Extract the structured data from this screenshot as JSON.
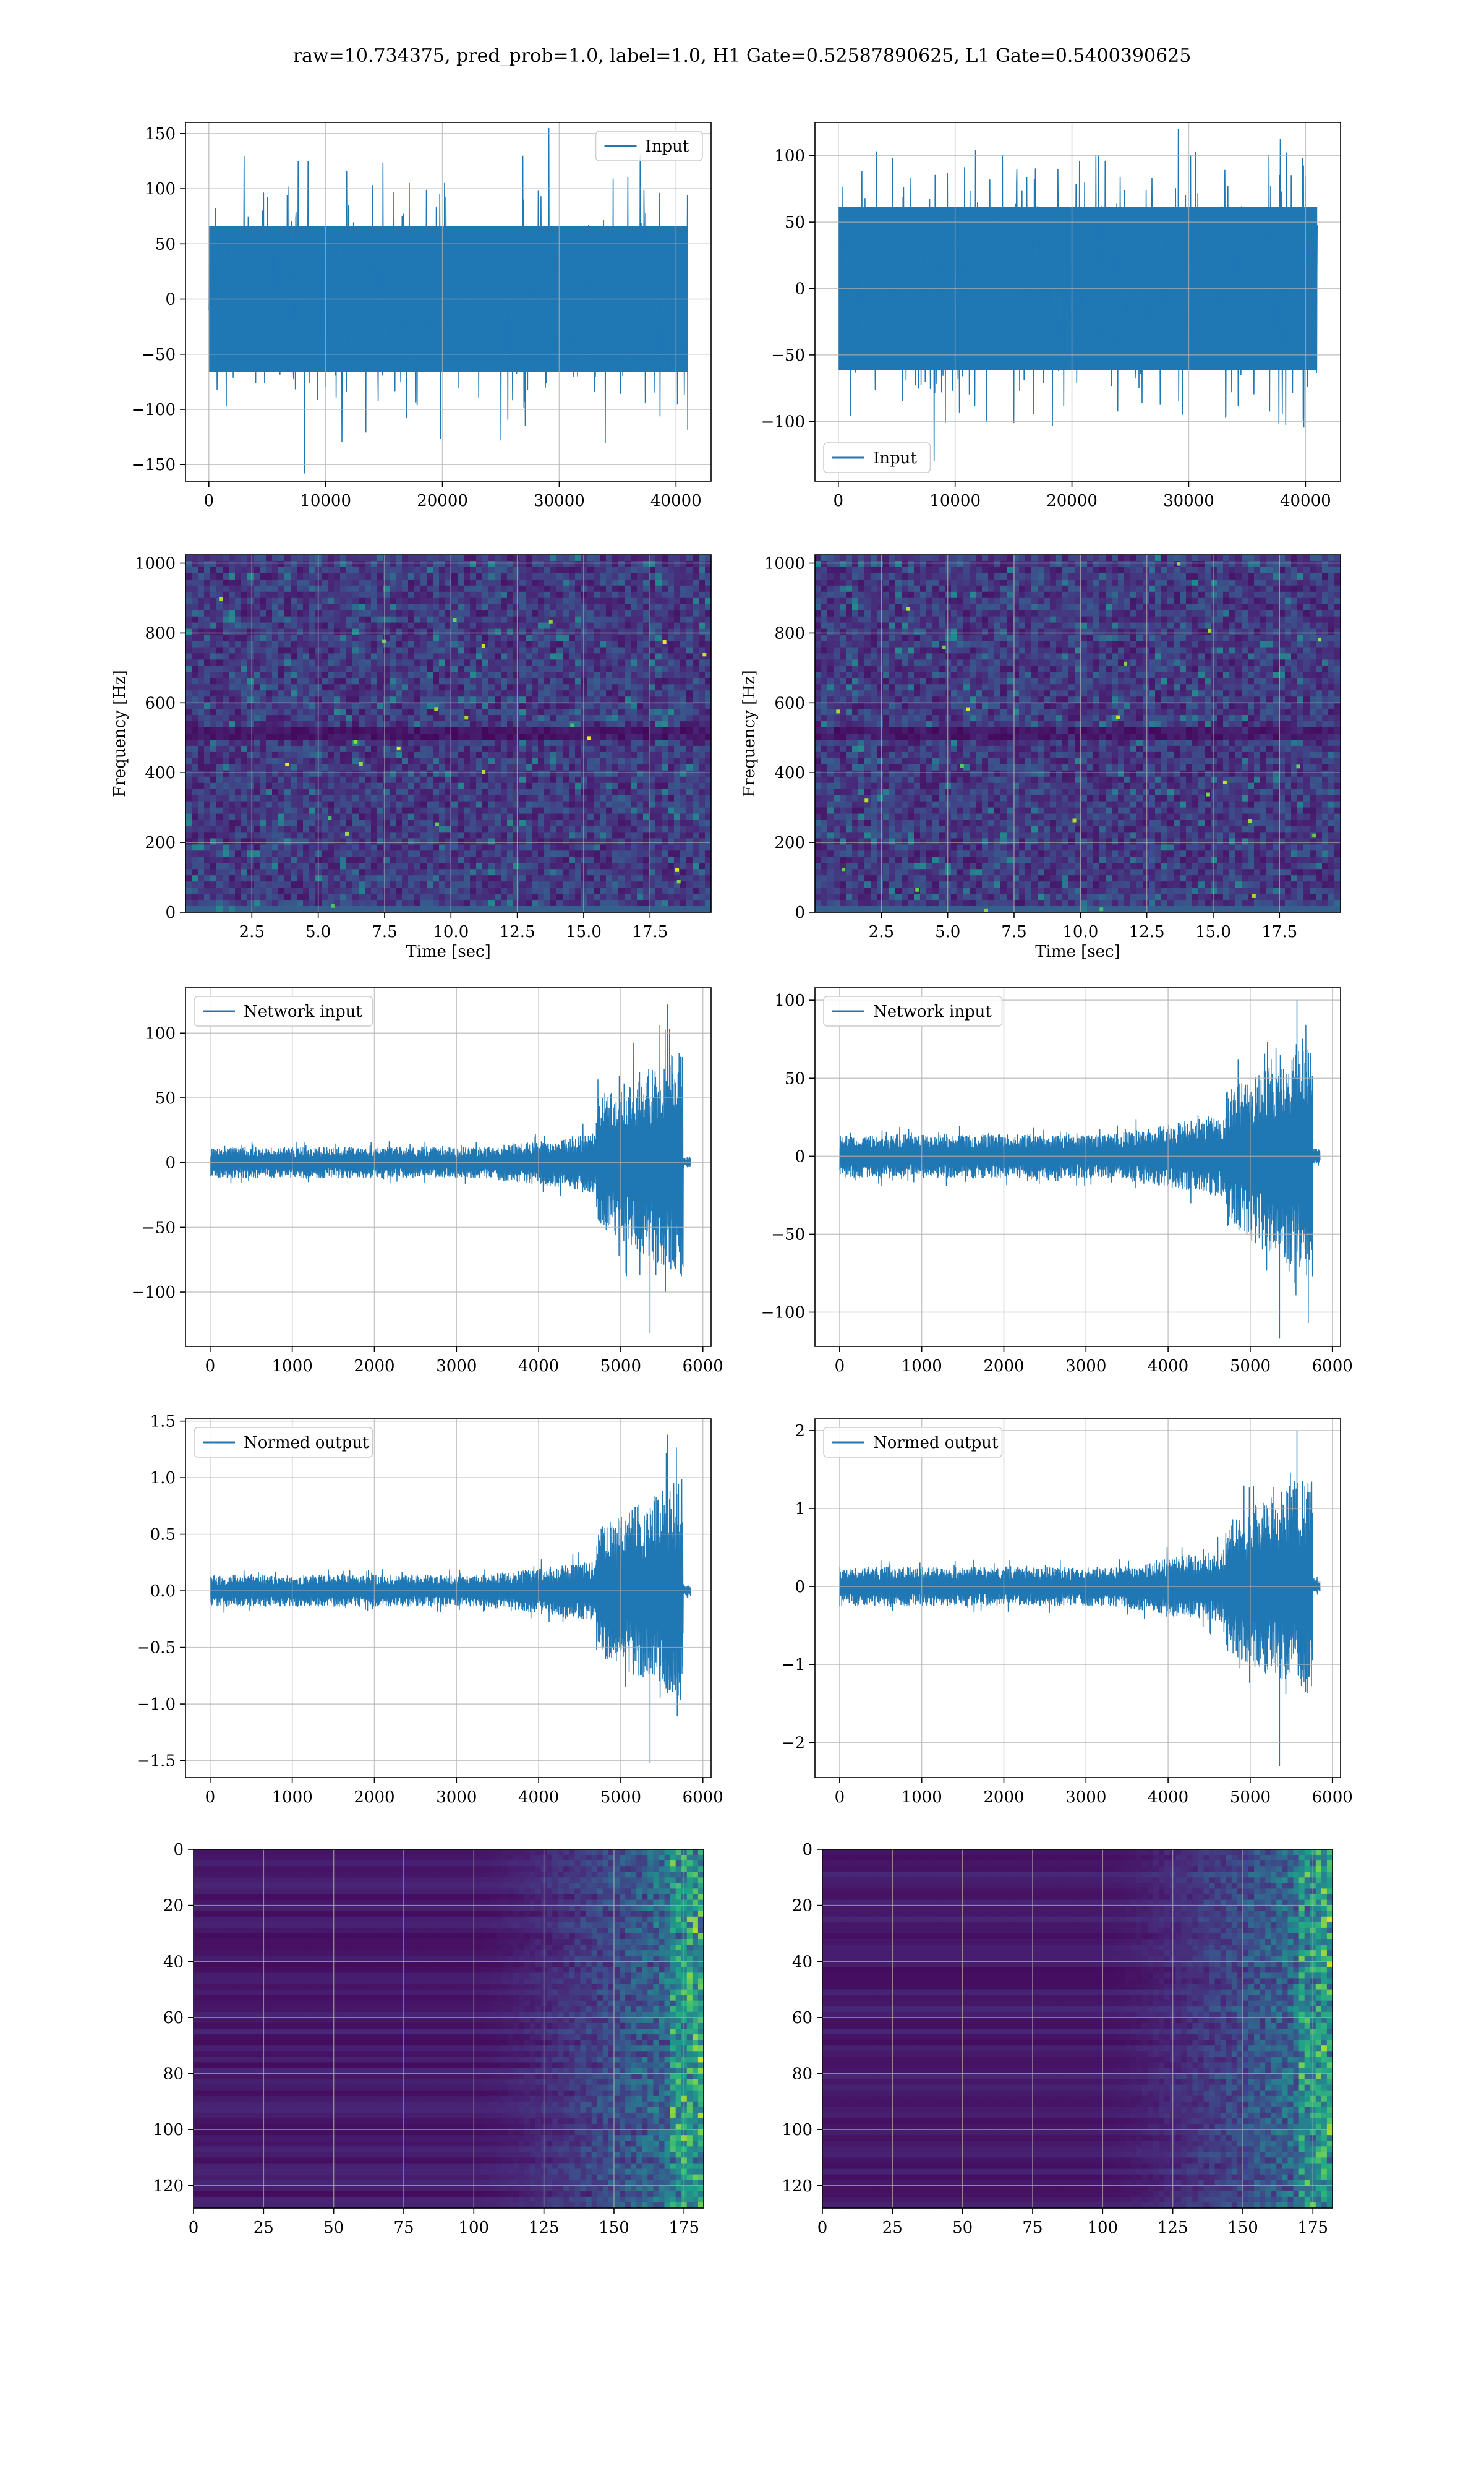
{
  "figure": {
    "title": "raw=10.734375, pred_prob=1.0, label=1.0, H1 Gate=0.52587890625, L1 Gate=0.5400390625"
  },
  "chart_data": [
    {
      "id": "h1-input",
      "type": "line",
      "legend": [
        "Input"
      ],
      "legend_loc": "upper right",
      "xlim": [
        -2000,
        43000
      ],
      "ylim": [
        -165,
        160
      ],
      "xticks": [
        0,
        10000,
        20000,
        30000,
        40000
      ],
      "yticks": [
        -150,
        -100,
        -50,
        0,
        50,
        100,
        150
      ],
      "xlabel": "",
      "ylabel": "",
      "grid": true,
      "series": [
        {
          "name": "Input",
          "x_range": [
            0,
            41000
          ],
          "envelope": 75,
          "peak": 155,
          "trough": -158
        }
      ]
    },
    {
      "id": "l1-input",
      "type": "line",
      "legend": [
        "Input"
      ],
      "legend_loc": "lower left",
      "xlim": [
        -2000,
        43000
      ],
      "ylim": [
        -145,
        125
      ],
      "xticks": [
        0,
        10000,
        20000,
        30000,
        40000
      ],
      "yticks": [
        -100,
        -50,
        0,
        50,
        100
      ],
      "xlabel": "",
      "ylabel": "",
      "grid": true,
      "series": [
        {
          "name": "Input",
          "x_range": [
            0,
            41000
          ],
          "envelope": 70,
          "peak": 120,
          "trough": -130
        }
      ]
    },
    {
      "id": "h1-spectrogram",
      "type": "heatmap",
      "colormap": "viridis",
      "xlim": [
        0,
        19.8
      ],
      "ylim": [
        0,
        1024
      ],
      "xticks": [
        2.5,
        5.0,
        7.5,
        10.0,
        12.5,
        15.0,
        17.5
      ],
      "yticks": [
        0,
        200,
        400,
        600,
        800,
        1000
      ],
      "xlabel": "Time [sec]",
      "ylabel": "Frequency [Hz]",
      "grid": true
    },
    {
      "id": "l1-spectrogram",
      "type": "heatmap",
      "colormap": "viridis",
      "xlim": [
        0,
        19.8
      ],
      "ylim": [
        0,
        1024
      ],
      "xticks": [
        2.5,
        5.0,
        7.5,
        10.0,
        12.5,
        15.0,
        17.5
      ],
      "yticks": [
        0,
        200,
        400,
        600,
        800,
        1000
      ],
      "xlabel": "Time [sec]",
      "ylabel": "Frequency [Hz]",
      "grid": true
    },
    {
      "id": "h1-network-input",
      "type": "line",
      "legend": [
        "Network input"
      ],
      "legend_loc": "upper left",
      "xlim": [
        -300,
        6100
      ],
      "ylim": [
        -142,
        135
      ],
      "xticks": [
        0,
        1000,
        2000,
        3000,
        4000,
        5000,
        6000
      ],
      "yticks": [
        -100,
        -50,
        0,
        50,
        100
      ],
      "xlabel": "",
      "ylabel": "",
      "grid": true,
      "series": [
        {
          "name": "Network input",
          "x_range": [
            0,
            5850
          ],
          "base_amp": 12,
          "burst_start": 4700,
          "burst_end": 5760,
          "burst_amp": 90,
          "peak": 122,
          "trough": -132
        }
      ]
    },
    {
      "id": "l1-network-input",
      "type": "line",
      "legend": [
        "Network input"
      ],
      "legend_loc": "upper left",
      "xlim": [
        -300,
        6100
      ],
      "ylim": [
        -122,
        108
      ],
      "xticks": [
        0,
        1000,
        2000,
        3000,
        4000,
        5000,
        6000
      ],
      "yticks": [
        -100,
        -50,
        0,
        50,
        100
      ],
      "xlabel": "",
      "ylabel": "",
      "grid": true,
      "series": [
        {
          "name": "Network input",
          "x_range": [
            0,
            5850
          ],
          "base_amp": 14,
          "burst_start": 4700,
          "burst_end": 5760,
          "burst_amp": 80,
          "peak": 100,
          "trough": -117
        }
      ]
    },
    {
      "id": "h1-normed-output",
      "type": "line",
      "legend": [
        "Normed output"
      ],
      "legend_loc": "upper left",
      "xlim": [
        -300,
        6100
      ],
      "ylim": [
        -1.65,
        1.52
      ],
      "xticks": [
        0,
        1000,
        2000,
        3000,
        4000,
        5000,
        6000
      ],
      "yticks": [
        -1.5,
        -1.0,
        -0.5,
        0.0,
        0.5,
        1.0,
        1.5
      ],
      "xlabel": "",
      "ylabel": "",
      "grid": true,
      "series": [
        {
          "name": "Normed output",
          "x_range": [
            0,
            5850
          ],
          "base_amp": 0.14,
          "burst_start": 4700,
          "burst_end": 5760,
          "burst_amp": 1.0,
          "peak": 1.38,
          "trough": -1.52
        }
      ]
    },
    {
      "id": "l1-normed-output",
      "type": "line",
      "legend": [
        "Normed output"
      ],
      "legend_loc": "upper left",
      "xlim": [
        -300,
        6100
      ],
      "ylim": [
        -2.45,
        2.15
      ],
      "xticks": [
        0,
        1000,
        2000,
        3000,
        4000,
        5000,
        6000
      ],
      "yticks": [
        -2,
        -1,
        0,
        1,
        2
      ],
      "xlabel": "",
      "ylabel": "",
      "grid": true,
      "series": [
        {
          "name": "Normed output",
          "x_range": [
            0,
            5850
          ],
          "base_amp": 0.25,
          "burst_start": 4700,
          "burst_end": 5760,
          "burst_amp": 1.5,
          "peak": 2.0,
          "trough": -2.3
        }
      ]
    },
    {
      "id": "h1-feature-map",
      "type": "heatmap",
      "colormap": "viridis",
      "xlim": [
        0,
        182
      ],
      "ylim": [
        128,
        0
      ],
      "xticks": [
        0,
        25,
        50,
        75,
        100,
        125,
        150,
        175
      ],
      "yticks": [
        0,
        20,
        40,
        60,
        80,
        100,
        120
      ],
      "xlabel": "",
      "ylabel": "",
      "grid": true
    },
    {
      "id": "l1-feature-map",
      "type": "heatmap",
      "colormap": "viridis",
      "xlim": [
        0,
        182
      ],
      "ylim": [
        128,
        0
      ],
      "xticks": [
        0,
        25,
        50,
        75,
        100,
        125,
        150,
        175
      ],
      "yticks": [
        0,
        20,
        40,
        60,
        80,
        100,
        120
      ],
      "xlabel": "",
      "ylabel": "",
      "grid": true
    }
  ]
}
